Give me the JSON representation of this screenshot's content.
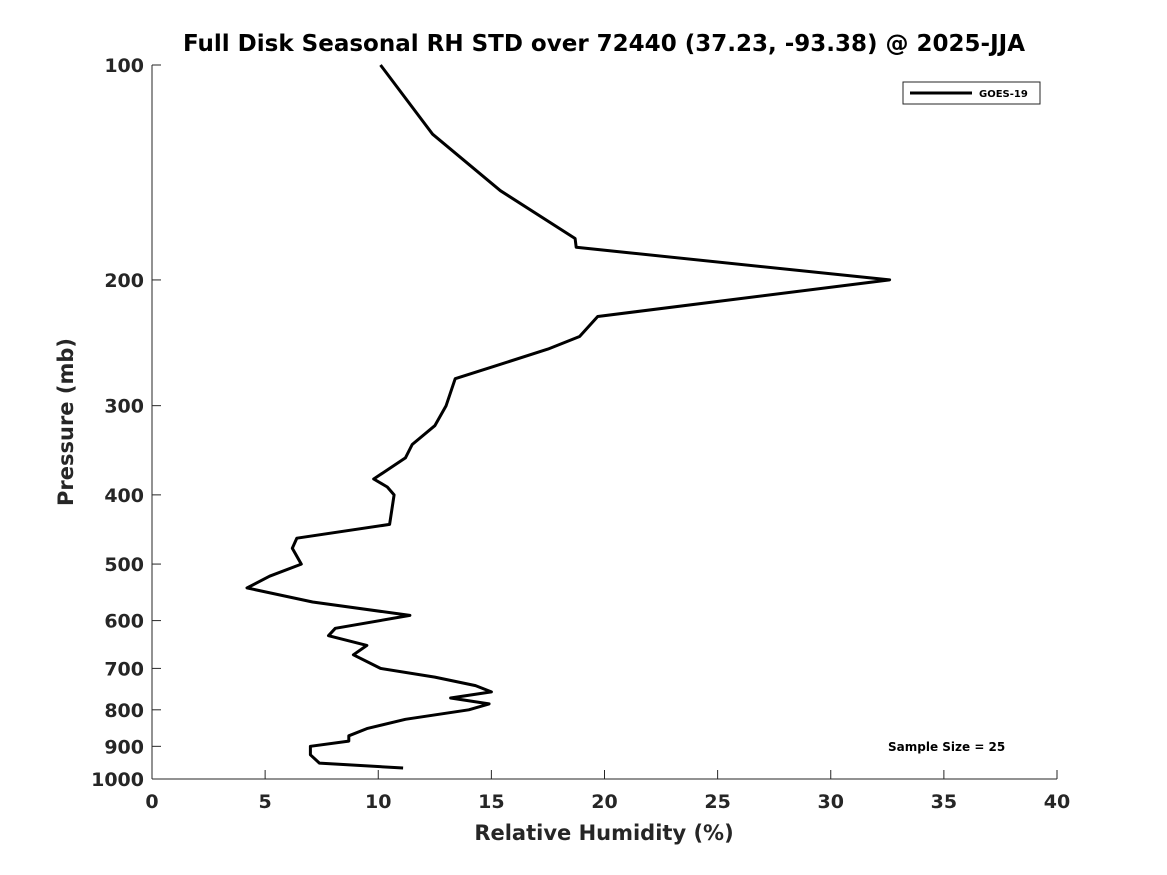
{
  "chart_data": {
    "type": "line",
    "title": "Full Disk Seasonal RH STD over 72440 (37.23, -93.38) @ 2025-JJA",
    "xlabel": "Relative Humidity (%)",
    "ylabel": "Pressure (mb)",
    "xlim": [
      0,
      40
    ],
    "ylim": [
      100,
      1000
    ],
    "y_scale": "log",
    "y_reversed": true,
    "x_ticks": [
      0,
      5,
      10,
      15,
      20,
      25,
      30,
      35,
      40
    ],
    "y_ticks": [
      100,
      200,
      300,
      400,
      500,
      600,
      700,
      800,
      900,
      1000
    ],
    "grid": false,
    "legend_position": "top-right",
    "annotation": "Sample Size = 25",
    "series": [
      {
        "name": "GOES-19",
        "color": "#000000",
        "points": [
          [
            10.1,
            100
          ],
          [
            12.4,
            125
          ],
          [
            15.4,
            150
          ],
          [
            18.7,
            175
          ],
          [
            18.75,
            180
          ],
          [
            32.6,
            200
          ],
          [
            19.7,
            225
          ],
          [
            18.9,
            240
          ],
          [
            17.5,
            250
          ],
          [
            15.0,
            265
          ],
          [
            13.4,
            275
          ],
          [
            13.0,
            300
          ],
          [
            12.5,
            320
          ],
          [
            11.5,
            340
          ],
          [
            11.2,
            355
          ],
          [
            9.8,
            380
          ],
          [
            10.4,
            390
          ],
          [
            10.7,
            400
          ],
          [
            10.6,
            420
          ],
          [
            10.5,
            440
          ],
          [
            6.4,
            460
          ],
          [
            6.2,
            475
          ],
          [
            6.6,
            500
          ],
          [
            5.2,
            520
          ],
          [
            4.2,
            540
          ],
          [
            7.1,
            565
          ],
          [
            11.4,
            590
          ],
          [
            8.1,
            615
          ],
          [
            7.8,
            630
          ],
          [
            9.5,
            650
          ],
          [
            8.9,
            670
          ],
          [
            10.1,
            700
          ],
          [
            12.5,
            720
          ],
          [
            14.3,
            740
          ],
          [
            15.0,
            755
          ],
          [
            13.2,
            770
          ],
          [
            14.9,
            785
          ],
          [
            14.0,
            800
          ],
          [
            11.2,
            825
          ],
          [
            9.5,
            850
          ],
          [
            8.7,
            870
          ],
          [
            8.7,
            885
          ],
          [
            7.0,
            900
          ],
          [
            7.0,
            925
          ],
          [
            7.4,
            950
          ],
          [
            11.1,
            965
          ]
        ]
      }
    ]
  }
}
